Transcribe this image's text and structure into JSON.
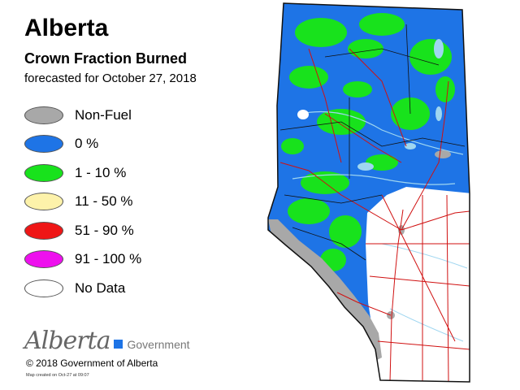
{
  "map": {
    "region": "Alberta",
    "title": "Crown Fraction Burned",
    "forecast": "forecasted for October 27, 2018"
  },
  "legend": [
    {
      "label": "Non-Fuel",
      "color": "#a8a8a8"
    },
    {
      "label": "0 %",
      "color": "#1e74e6"
    },
    {
      "label": "1 - 10 %",
      "color": "#18e21c"
    },
    {
      "label": "11 - 50 %",
      "color": "#fdf2aa"
    },
    {
      "label": "51 - 90 %",
      "color": "#ef1616"
    },
    {
      "label": "91 - 100 %",
      "color": "#ee10ee"
    },
    {
      "label": "No Data",
      "color": "#ffffff"
    }
  ],
  "branding": {
    "logo_script": "Alberta",
    "logo_gov": "Government",
    "copyright": "© 2018 Government of Alberta",
    "created": "Map created on Oct-27 at 09:07"
  },
  "colors": {
    "province_blue": "#1e74e6",
    "fuel_green": "#18e21c",
    "no_data": "#ffffff",
    "roads": "#d01010",
    "water": "#9fd6f0",
    "mountains": "#a8a8a8",
    "borders": "#111111"
  }
}
